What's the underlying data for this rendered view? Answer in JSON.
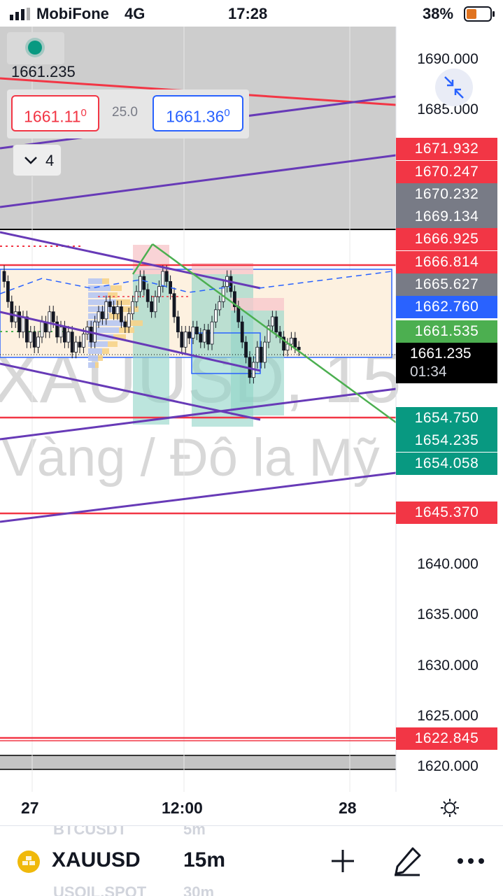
{
  "status_bar": {
    "carrier": "MobiFone",
    "network": "4G",
    "time": "17:28",
    "battery": "38%"
  },
  "overlay": {
    "last_price": "1661.235",
    "sell": {
      "price": "1661.11",
      "pip": "0"
    },
    "buy": {
      "price": "1661.36",
      "pip": "0"
    },
    "spread": "25.0",
    "indicator_count": "4"
  },
  "watermark": {
    "symbol": "XAUUSD, 15",
    "description": "Vàng / Đô la Mỹ"
  },
  "price_axis": {
    "labels": [
      {
        "text": "1690.000",
        "price": 1690
      },
      {
        "text": "1685.000",
        "price": 1685
      },
      {
        "text": "1640.000",
        "price": 1640
      },
      {
        "text": "1635.000",
        "price": 1635
      },
      {
        "text": "1630.000",
        "price": 1630
      },
      {
        "text": "1625.000",
        "price": 1625
      },
      {
        "text": "1620.000",
        "price": 1620
      }
    ],
    "tags": [
      {
        "text": "1671.932",
        "color": "#f23645",
        "price": 1671.932
      },
      {
        "text": "1670.247",
        "color": "#f23645",
        "price": 1670.247
      },
      {
        "text": "1670.232",
        "color": "#787b86",
        "price": 1670.232
      },
      {
        "text": "1669.134",
        "color": "#787b86",
        "price": 1669.134
      },
      {
        "text": "1666.925",
        "color": "#f23645",
        "price": 1666.925
      },
      {
        "text": "1666.814",
        "color": "#f23645",
        "price": 1666.814
      },
      {
        "text": "1665.627",
        "color": "#787b86",
        "price": 1665.627
      },
      {
        "text": "1662.760",
        "color": "#2962ff",
        "price": 1662.76
      },
      {
        "text": "1661.535",
        "color": "#4caf50",
        "price": 1661.535
      },
      {
        "text": "1654.750",
        "color": "#089981",
        "price": 1654.75
      },
      {
        "text": "1654.235",
        "color": "#089981",
        "price": 1654.235
      },
      {
        "text": "1654.058",
        "color": "#089981",
        "price": 1654.058
      },
      {
        "text": "1645.370",
        "color": "#f23645",
        "price": 1645.37
      },
      {
        "text": "1622.845",
        "color": "#f23645",
        "price": 1622.845
      }
    ],
    "current": {
      "price": "1661.235",
      "countdown": "01:34"
    }
  },
  "time_axis": {
    "labels": [
      "27",
      "12:00",
      "28"
    ]
  },
  "bottom_bar": {
    "symbol": "XAUUSD",
    "timeframe": "15m",
    "ghost_above": {
      "symbol": "BTCUSDT",
      "timeframe": "5m"
    },
    "ghost_below": {
      "symbol": "USOIL.SPOT",
      "timeframe": "30m"
    }
  },
  "colors": {
    "bull": "#089981",
    "bear": "#f23645",
    "channel": "#673ab7",
    "trend": "#4caf50",
    "zone": "#2962ff",
    "shade": "#c8c8c8"
  },
  "icons": [
    "signal-icon",
    "battery-icon",
    "collapse-arrows-icon",
    "chevron-down-icon",
    "gear-icon",
    "gold-bars-icon",
    "plus-icon",
    "pen-icon",
    "more-icon"
  ]
}
